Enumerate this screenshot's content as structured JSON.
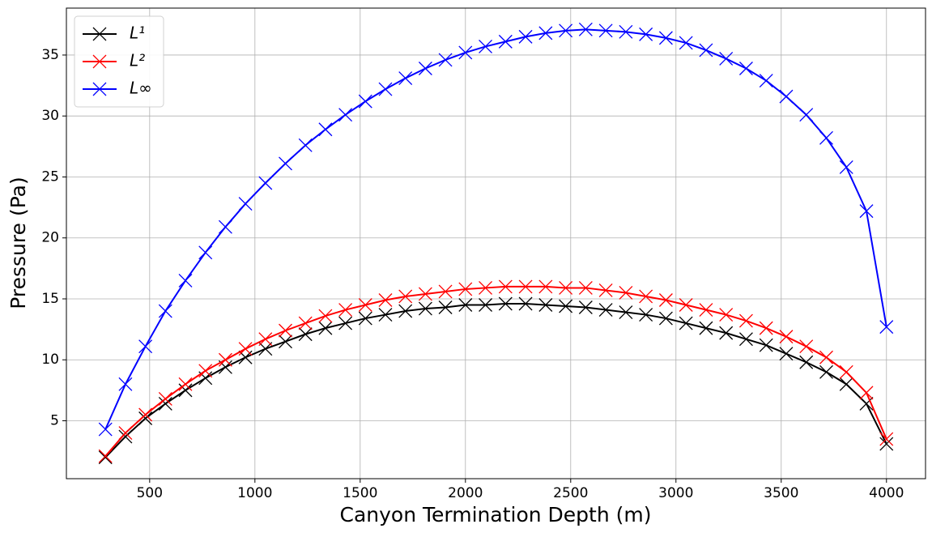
{
  "chart_data": {
    "type": "line",
    "xlabel": "Canyon Termination Depth (m)",
    "ylabel": "Pressure (Pa)",
    "x": [
      290,
      385,
      480,
      575,
      670,
      765,
      860,
      955,
      1050,
      1145,
      1240,
      1335,
      1430,
      1525,
      1620,
      1715,
      1810,
      1905,
      2000,
      2095.2,
      2190.5,
      2285.7,
      2381.0,
      2476.2,
      2571.4,
      2666.7,
      2761.9,
      2857.1,
      2952.4,
      3047.6,
      3142.9,
      3238.1,
      3333.3,
      3428.6,
      3523.8,
      3619.0,
      3714.3,
      3809.5,
      3904.8,
      4000
    ],
    "series": [
      {
        "name": "L¹",
        "color": "#000000",
        "values": [
          2.0,
          3.7,
          5.2,
          6.4,
          7.5,
          8.5,
          9.4,
          10.2,
          10.9,
          11.5,
          12.1,
          12.6,
          13.0,
          13.4,
          13.7,
          14.0,
          14.2,
          14.3,
          14.5,
          14.5,
          14.6,
          14.6,
          14.5,
          14.4,
          14.3,
          14.1,
          13.9,
          13.7,
          13.4,
          13.0,
          12.6,
          12.2,
          11.7,
          11.2,
          10.5,
          9.8,
          9.0,
          8.0,
          6.4,
          3.1
        ]
      },
      {
        "name": "L²",
        "color": "#ff0000",
        "values": [
          2.1,
          4.0,
          5.5,
          6.8,
          8.0,
          9.1,
          10.0,
          10.9,
          11.7,
          12.4,
          13.0,
          13.6,
          14.1,
          14.5,
          14.9,
          15.2,
          15.4,
          15.6,
          15.8,
          15.9,
          16.0,
          16.0,
          16.0,
          15.9,
          15.9,
          15.7,
          15.5,
          15.2,
          14.9,
          14.5,
          14.1,
          13.7,
          13.2,
          12.6,
          11.9,
          11.1,
          10.2,
          9.0,
          7.3,
          3.5
        ]
      },
      {
        "name": "L∞",
        "color": "#0000ff",
        "values": [
          4.3,
          8.0,
          11.1,
          14.0,
          16.5,
          18.8,
          20.9,
          22.8,
          24.5,
          26.1,
          27.6,
          28.9,
          30.1,
          31.2,
          32.2,
          33.1,
          33.9,
          34.6,
          35.2,
          35.7,
          36.1,
          36.5,
          36.8,
          37.0,
          37.1,
          37.0,
          36.9,
          36.7,
          36.4,
          36.0,
          35.4,
          34.7,
          33.9,
          32.9,
          31.6,
          30.1,
          28.2,
          25.8,
          22.2,
          12.7
        ]
      }
    ],
    "xlim": [
      104.5,
      4185.5
    ],
    "ylim": [
      0.25,
      38.85
    ],
    "xticks": [
      500,
      1000,
      1500,
      2000,
      2500,
      3000,
      3500,
      4000
    ],
    "yticks": [
      5,
      10,
      15,
      20,
      25,
      30,
      35
    ],
    "grid": true,
    "legend": "upper left"
  }
}
